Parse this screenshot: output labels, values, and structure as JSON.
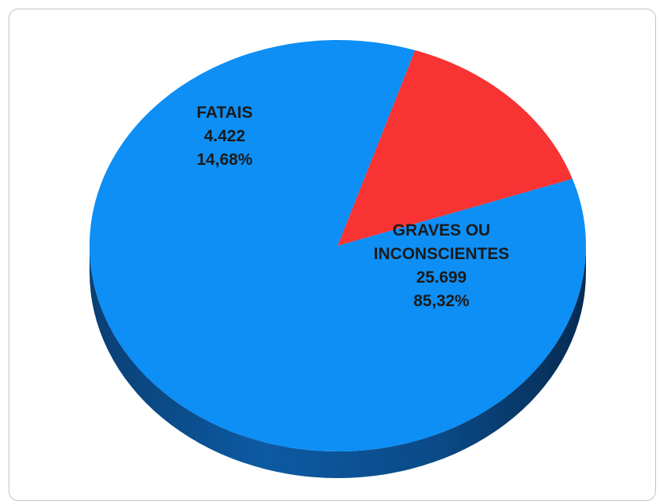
{
  "chart_data": {
    "type": "pie",
    "title": "",
    "style": "3d",
    "start_angle_deg": -19,
    "colors": {
      "top": [
        "#0d8ff5",
        "#f73333"
      ],
      "side": [
        "#0a4f8f",
        "#8e1a1a"
      ]
    },
    "slices": [
      {
        "label_lines": [
          "GRAVES OU",
          "INCONSCIENTES"
        ],
        "value": 25699,
        "value_label": "25.699",
        "percent": 85.32,
        "percent_label": "85,32%"
      },
      {
        "label_lines": [
          "FATAIS"
        ],
        "value": 4422,
        "value_label": "4.422",
        "percent": 14.68,
        "percent_label": "14,68%"
      }
    ]
  }
}
